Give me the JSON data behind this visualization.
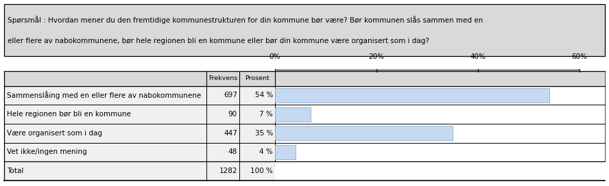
{
  "title_line1": "Spørsmål : Hvordan mener du den fremtidige kommunestrukturen for din kommune bør være? Bør kommunen slås sammen med en",
  "title_line2": "eller flere av nabokommunene, bør hele regionen bli en kommune eller bør din kommune være organisert som i dag?",
  "categories": [
    "Sammenslåing med en eller flere av nabokommunene",
    "Hele regionen bør bli en kommune",
    "Være organisert som i dag",
    "Vet ikke/ingen mening"
  ],
  "frekvens": [
    697,
    90,
    447,
    48
  ],
  "prosent_labels": [
    "54 %",
    "7 %",
    "35 %",
    "4 %"
  ],
  "prosent_values": [
    54,
    7,
    35,
    4
  ],
  "total_frekvens": 1282,
  "total_prosent": "100 %",
  "bar_color": "#c5d9f1",
  "bar_edge_color": "#8eaacc",
  "header_bg": "#d9d9d9",
  "table_bg": "#f0f0f0",
  "title_bg": "#d9d9d9",
  "x_ticks": [
    0,
    20,
    40,
    60
  ],
  "bar_max_pct": 65,
  "col_header_frekvens": "Frekvens",
  "col_header_prosent": "Prosent",
  "figure_width": 8.88,
  "figure_height": 2.72,
  "dpi": 100
}
